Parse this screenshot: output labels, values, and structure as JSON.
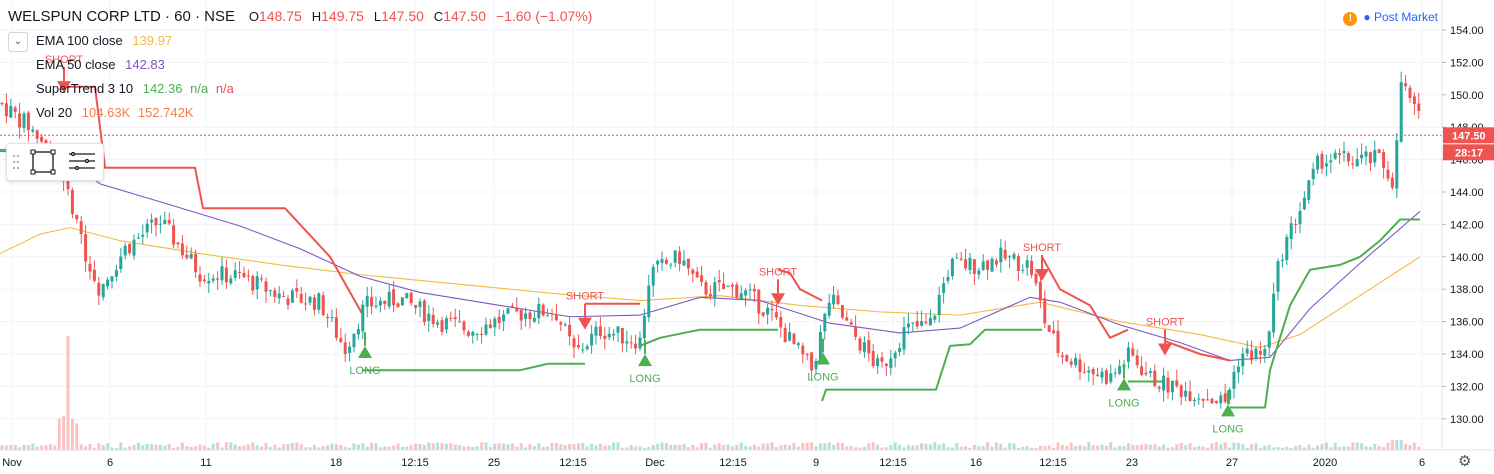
{
  "header": {
    "symbol": "WELSPUN CORP LTD · 60 · NSE",
    "open_label": "O",
    "open": "148.75",
    "high_label": "H",
    "high": "149.75",
    "low_label": "L",
    "low": "147.50",
    "close_label": "C",
    "close": "147.50",
    "change": "−1.60 (−1.07%)"
  },
  "legend": {
    "ema100": {
      "label": "EMA 100 close",
      "value": "139.97",
      "color": "#f5b940"
    },
    "ema50": {
      "label": "EMA 50 close",
      "value": "142.83",
      "color": "#7e57c2"
    },
    "supertrend": {
      "label": "SuperTrend 3 10",
      "value": "142.36",
      "na1": "n/a",
      "na2": "n/a",
      "up_color": "#4caf50",
      "down_color": "#ef5350"
    },
    "volume": {
      "label": "Vol 20",
      "value": "104.63K",
      "ma": "152.742K",
      "color": "#f77c4a"
    }
  },
  "market_status": {
    "icon": "warning-icon",
    "label": "Post Market"
  },
  "price_axis": {
    "ticks": [
      "154.00",
      "152.00",
      "150.00",
      "148.00",
      "146.00",
      "144.00",
      "142.00",
      "140.00",
      "138.00",
      "136.00",
      "134.00",
      "132.00",
      "130.00"
    ],
    "last_price": "147.50",
    "countdown": "28:17",
    "last_price_color": "#ef5350"
  },
  "time_axis": {
    "ticks": [
      "Nov",
      "6",
      "11",
      "18",
      "12:15",
      "25",
      "12:15",
      "Dec",
      "12:15",
      "9",
      "12:15",
      "16",
      "12:15",
      "23",
      "27",
      "2020",
      "6"
    ]
  },
  "signals": {
    "long_label": "LONG",
    "short_label": "SHORT"
  },
  "chart_data": {
    "type": "candlestick",
    "title": "",
    "xlabel": "",
    "ylabel": "",
    "ylim": [
      129,
      155
    ],
    "x_range": [
      "2019-11-01",
      "2020-01-07"
    ],
    "series": [
      {
        "name": "EMA 100 close",
        "points": [
          [
            0,
            140.2
          ],
          [
            40,
            141.4
          ],
          [
            70,
            141.8
          ],
          [
            120,
            141.0
          ],
          [
            200,
            140.2
          ],
          [
            280,
            139.5
          ],
          [
            360,
            138.9
          ],
          [
            460,
            138.3
          ],
          [
            560,
            137.7
          ],
          [
            640,
            137.3
          ],
          [
            720,
            137.6
          ],
          [
            800,
            137.0
          ],
          [
            880,
            136.6
          ],
          [
            960,
            136.4
          ],
          [
            1040,
            137.2
          ],
          [
            1120,
            136.0
          ],
          [
            1200,
            135.2
          ],
          [
            1260,
            134.4
          ],
          [
            1300,
            135.2
          ],
          [
            1360,
            137.6
          ],
          [
            1420,
            140.0
          ]
        ]
      },
      {
        "name": "EMA 50 close",
        "points": [
          [
            0,
            146.5
          ],
          [
            60,
            146.4
          ],
          [
            100,
            144.5
          ],
          [
            160,
            143.4
          ],
          [
            240,
            141.9
          ],
          [
            300,
            140.5
          ],
          [
            360,
            138.8
          ],
          [
            420,
            137.8
          ],
          [
            500,
            137.0
          ],
          [
            570,
            136.3
          ],
          [
            640,
            136.4
          ],
          [
            700,
            137.5
          ],
          [
            760,
            137.3
          ],
          [
            830,
            135.9
          ],
          [
            900,
            135.3
          ],
          [
            960,
            135.6
          ],
          [
            1030,
            137.5
          ],
          [
            1060,
            137.2
          ],
          [
            1120,
            135.8
          ],
          [
            1180,
            134.7
          ],
          [
            1230,
            133.6
          ],
          [
            1270,
            133.8
          ],
          [
            1310,
            136.8
          ],
          [
            1360,
            139.6
          ],
          [
            1420,
            142.8
          ]
        ]
      },
      {
        "name": "SuperTrend 3 10",
        "segments": [
          {
            "trend": "up",
            "points": [
              [
                0,
                146.6
              ],
              [
                60,
                146.6
              ]
            ]
          },
          {
            "trend": "down",
            "points": [
              [
                60,
                150.5
              ],
              [
                95,
                150.5
              ],
              [
                105,
                145.5
              ],
              [
                195,
                145.5
              ],
              [
                203,
                143.0
              ],
              [
                285,
                143.0
              ],
              [
                300,
                142.0
              ],
              [
                330,
                140.0
              ],
              [
                362,
                136.5
              ]
            ]
          },
          {
            "trend": "up",
            "points": [
              [
                362,
                133.0
              ],
              [
                520,
                133.0
              ],
              [
                548,
                133.4
              ],
              [
                585,
                133.4
              ]
            ]
          },
          {
            "trend": "down",
            "points": [
              [
                585,
                137.1
              ],
              [
                640,
                137.1
              ]
            ]
          },
          {
            "trend": "up",
            "points": [
              [
                640,
                134.5
              ],
              [
                660,
                135.0
              ],
              [
                700,
                135.5
              ],
              [
                778,
                135.5
              ]
            ]
          },
          {
            "trend": "down",
            "points": [
              [
                778,
                139.2
              ],
              [
                790,
                139.0
              ],
              [
                800,
                138.0
              ],
              [
                822,
                137.3
              ]
            ]
          },
          {
            "trend": "up",
            "points": [
              [
                822,
                131.1
              ],
              [
                826,
                131.8
              ],
              [
                936,
                131.8
              ],
              [
                950,
                134.5
              ],
              [
                970,
                134.6
              ],
              [
                985,
                135.5
              ],
              [
                1042,
                135.5
              ]
            ]
          },
          {
            "trend": "down",
            "points": [
              [
                1042,
                140.0
              ],
              [
                1060,
                138.0
              ],
              [
                1090,
                137.0
              ],
              [
                1110,
                135.0
              ],
              [
                1128,
                135.5
              ]
            ]
          },
          {
            "trend": "up",
            "points": [
              [
                1128,
                132.3
              ],
              [
                1165,
                132.3
              ]
            ]
          },
          {
            "trend": "down",
            "points": [
              [
                1165,
                134.8
              ],
              [
                1200,
                134.0
              ],
              [
                1230,
                133.6
              ]
            ]
          },
          {
            "trend": "up",
            "points": [
              [
                1230,
                130.7
              ],
              [
                1265,
                130.7
              ],
              [
                1270,
                133.0
              ],
              [
                1290,
                137.0
              ],
              [
                1310,
                139.2
              ],
              [
                1340,
                139.5
              ],
              [
                1360,
                140.0
              ],
              [
                1380,
                141.0
              ],
              [
                1400,
                142.3
              ],
              [
                1420,
                142.3
              ]
            ]
          }
        ]
      }
    ],
    "signals": [
      {
        "type": "SHORT",
        "x": 64,
        "price": 150.6
      },
      {
        "type": "LONG",
        "x": 365,
        "price": 134.0
      },
      {
        "type": "SHORT",
        "x": 585,
        "price": 136.0
      },
      {
        "type": "LONG",
        "x": 645,
        "price": 133.5
      },
      {
        "type": "SHORT",
        "x": 778,
        "price": 137.5
      },
      {
        "type": "LONG",
        "x": 823,
        "price": 133.6
      },
      {
        "type": "SHORT",
        "x": 1042,
        "price": 139.0
      },
      {
        "type": "LONG",
        "x": 1124,
        "price": 132.0
      },
      {
        "type": "SHORT",
        "x": 1165,
        "price": 134.4
      },
      {
        "type": "LONG",
        "x": 1228,
        "price": 130.4
      }
    ],
    "price_path": [
      [
        0,
        149.5
      ],
      [
        30,
        148.0
      ],
      [
        60,
        145.8
      ],
      [
        80,
        141.0
      ],
      [
        100,
        138.0
      ],
      [
        125,
        140.5
      ],
      [
        160,
        142.2
      ],
      [
        200,
        139.0
      ],
      [
        240,
        138.8
      ],
      [
        280,
        137.6
      ],
      [
        320,
        137.2
      ],
      [
        345,
        134.3
      ],
      [
        365,
        137.0
      ],
      [
        400,
        137.4
      ],
      [
        440,
        136.0
      ],
      [
        470,
        135.5
      ],
      [
        520,
        136.5
      ],
      [
        555,
        136.7
      ],
      [
        575,
        134.0
      ],
      [
        600,
        135.5
      ],
      [
        640,
        134.8
      ],
      [
        650,
        139.0
      ],
      [
        680,
        140.0
      ],
      [
        700,
        138.0
      ],
      [
        740,
        138.0
      ],
      [
        770,
        136.5
      ],
      [
        800,
        134.0
      ],
      [
        812,
        133.0
      ],
      [
        830,
        137.5
      ],
      [
        850,
        135.5
      ],
      [
        880,
        133.0
      ],
      [
        905,
        135.5
      ],
      [
        930,
        135.8
      ],
      [
        950,
        139.5
      ],
      [
        980,
        139.5
      ],
      [
        1000,
        140.0
      ],
      [
        1030,
        139.5
      ],
      [
        1045,
        136.0
      ],
      [
        1060,
        134.0
      ],
      [
        1090,
        133.0
      ],
      [
        1110,
        132.5
      ],
      [
        1130,
        134.0
      ],
      [
        1150,
        132.5
      ],
      [
        1170,
        132.0
      ],
      [
        1200,
        131.5
      ],
      [
        1225,
        131.0
      ],
      [
        1240,
        134.0
      ],
      [
        1265,
        134.0
      ],
      [
        1280,
        140.0
      ],
      [
        1300,
        143.0
      ],
      [
        1320,
        146.0
      ],
      [
        1350,
        146.0
      ],
      [
        1380,
        146.0
      ],
      [
        1395,
        144.5
      ],
      [
        1400,
        151.0
      ],
      [
        1418,
        148.5
      ]
    ],
    "volume_spike": {
      "x": 68,
      "value": "high"
    },
    "last_price": 147.5
  }
}
